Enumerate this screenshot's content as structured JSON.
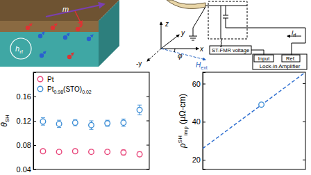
{
  "diagram": {
    "labels": [
      {
        "text": "m"
      },
      {
        "text": "h",
        "sub": "rf"
      },
      {
        "text": "z"
      },
      {
        "text": "y"
      },
      {
        "text": "x"
      },
      {
        "text": "-y"
      },
      {
        "text": "φ"
      },
      {
        "text": "H",
        "sub": "ext"
      },
      {
        "text": "ST-FMR voltage"
      },
      {
        "text": "I",
        "sub": "rf"
      },
      {
        "text": "Input"
      },
      {
        "text": "Ref."
      },
      {
        "text": "Lock-in Amplifier"
      }
    ]
  },
  "chart_data": [
    {
      "type": "scatter",
      "ylabel": {
        "text": "θ",
        "sub": "SH"
      },
      "x": [
        1,
        2,
        3,
        4,
        5,
        6,
        7
      ],
      "xlim": [
        0.4,
        7.6
      ],
      "ylim": [
        0.04,
        0.2
      ],
      "yticks": [
        0.04,
        0.08,
        0.12,
        0.16
      ],
      "tick_labels": "y",
      "legend": "upper left",
      "series": [
        {
          "name": "Pt",
          "color": "#e8457a",
          "marker": "circle",
          "values": [
            0.07,
            0.069,
            0.07,
            0.069,
            0.069,
            0.068,
            0.065
          ],
          "errors": [
            0.003,
            0.003,
            0.003,
            0.003,
            0.003,
            0.004,
            0.004
          ]
        },
        {
          "name": "Pt0.98(STO)0.02",
          "color": "#3f8fd6",
          "marker": "circle",
          "values": [
            0.119,
            0.115,
            0.117,
            0.113,
            0.116,
            0.117,
            0.138
          ],
          "errors": [
            0.006,
            0.006,
            0.005,
            0.007,
            0.005,
            0.006,
            0.008
          ]
        }
      ]
    },
    {
      "type": "scatter",
      "ylabel": {
        "text": "ρ",
        "sup": "SH",
        "sub": "imp",
        "unit": " (μΩ·cm)"
      },
      "xlim": [
        0.012,
        0.026
      ],
      "ylim": [
        15,
        66
      ],
      "yticks": [
        20,
        40,
        60
      ],
      "tick_labels": "y",
      "series": [
        {
          "type": "line",
          "line_style": "dashed",
          "color": "#2f6fd0",
          "x": [
            0.012,
            0.026
          ],
          "values": [
            26,
            66
          ]
        },
        {
          "type": "scatter",
          "marker": "circle",
          "color": "#3f8fd6",
          "x": [
            0.02
          ],
          "values": [
            49
          ]
        }
      ]
    }
  ]
}
